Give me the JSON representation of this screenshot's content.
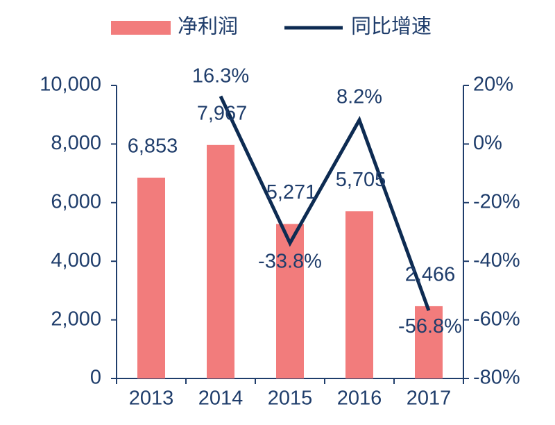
{
  "chart_data": {
    "type": "bar",
    "categories": [
      "2013",
      "2014",
      "2015",
      "2016",
      "2017"
    ],
    "series": [
      {
        "name": "净利润",
        "type": "bar",
        "color": "#f27c7c",
        "axis": "y",
        "values": [
          6853,
          7967,
          5271,
          5705,
          2466
        ],
        "value_labels": [
          "6,853",
          "7,967",
          "5,271",
          "5,705",
          "2,466"
        ]
      },
      {
        "name": "同比增速",
        "type": "line",
        "color": "#0d2b52",
        "axis": "y2",
        "values": [
          null,
          16.3,
          -33.8,
          8.2,
          -56.8
        ],
        "value_labels": [
          null,
          "16.3%",
          "-33.8%",
          "8.2%",
          "-56.8%"
        ]
      }
    ],
    "ylim": [
      0,
      10000
    ],
    "yticks": [
      0,
      {
        "value": 2000,
        "label": "2,000"
      },
      {
        "value": 4000,
        "label": "4,000"
      },
      {
        "value": 6000,
        "label": "6,000"
      },
      {
        "value": 8000,
        "label": "8,000"
      },
      {
        "value": 10000,
        "label": "10,000"
      }
    ],
    "y2lim": [
      -80,
      20
    ],
    "y2ticks": [
      {
        "value": -80,
        "label": "-80%"
      },
      {
        "value": -60,
        "label": "-60%"
      },
      {
        "value": -40,
        "label": "-40%"
      },
      {
        "value": -20,
        "label": "-20%"
      },
      {
        "value": 0,
        "label": "0%"
      },
      {
        "value": 20,
        "label": "20%"
      }
    ],
    "legend": "top"
  }
}
